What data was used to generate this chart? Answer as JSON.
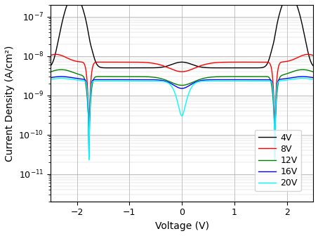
{
  "title": "",
  "xlabel": "Voltage (V)",
  "ylabel": "Current Density (A/cm²)",
  "xlim": [
    -2.5,
    2.5
  ],
  "ylim": [
    2e-12,
    2e-07
  ],
  "xticks": [
    -2,
    -1,
    0,
    1,
    2
  ],
  "legend_labels": [
    "4V",
    "8V",
    "12V",
    "16V",
    "20V"
  ],
  "colors": [
    "black",
    "red",
    "green",
    "blue",
    "cyan"
  ],
  "background": "white",
  "grid": true,
  "figsize": [
    4.53,
    3.36
  ],
  "dpi": 100
}
